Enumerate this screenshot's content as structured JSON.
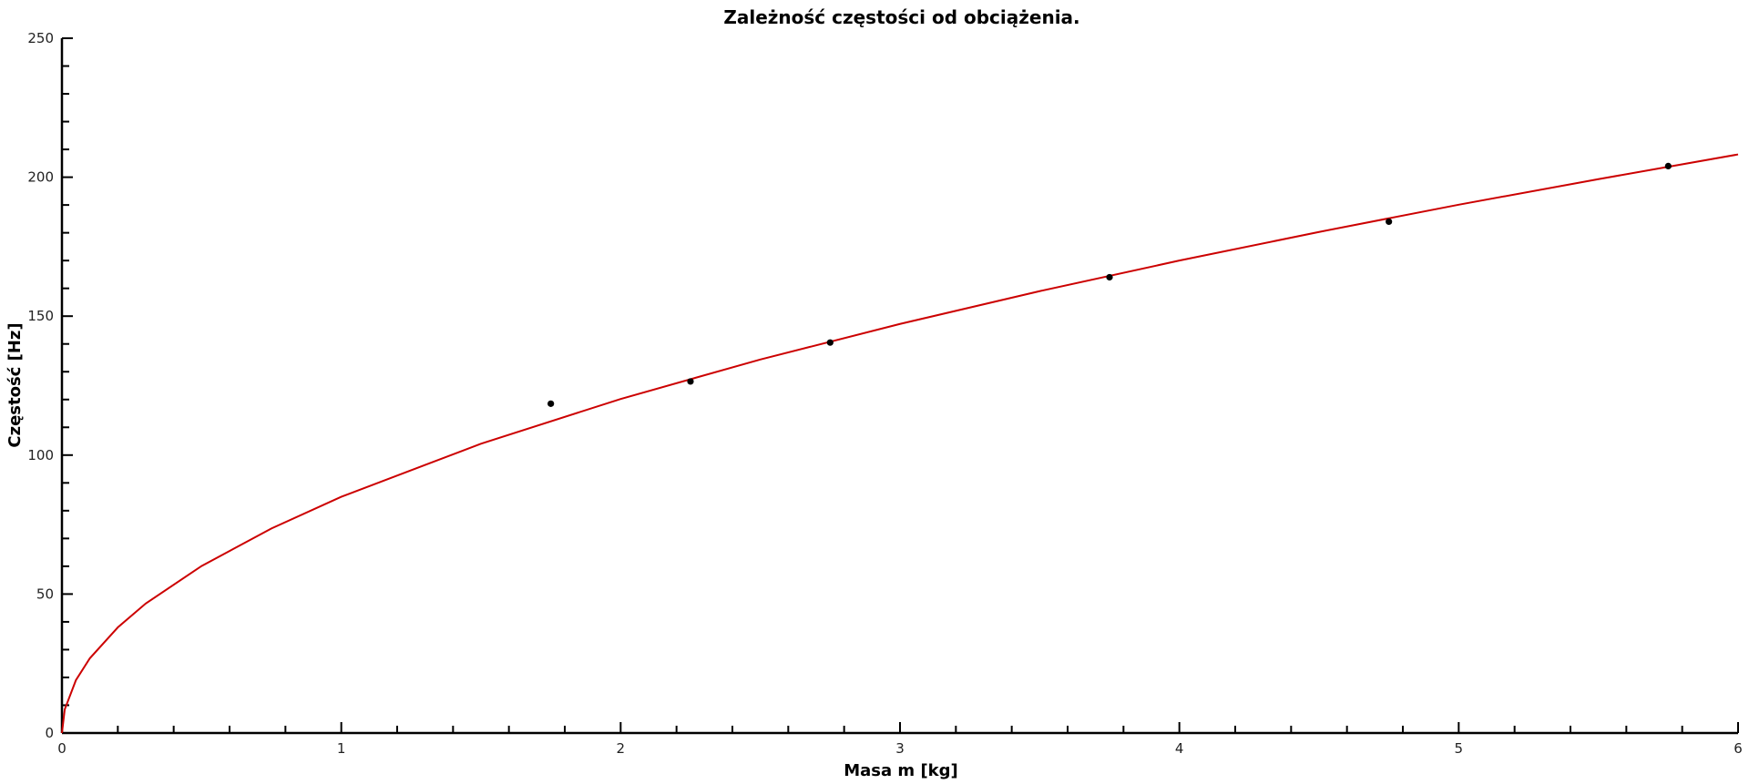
{
  "chart_data": {
    "type": "scatter",
    "title": "Zależność częstości od obciążenia.",
    "xlabel": "Masa m [kg]",
    "ylabel": "Częstość [Hz]",
    "xlim": [
      0,
      6
    ],
    "ylim": [
      0,
      250
    ],
    "x_ticks": [
      "0",
      "1",
      "2",
      "3",
      "4",
      "5",
      "6"
    ],
    "y_ticks": [
      "0",
      "50",
      "100",
      "150",
      "200",
      "250"
    ],
    "grid": false,
    "series": [
      {
        "kind": "points",
        "color": "#000000",
        "x": [
          1.75,
          2.25,
          2.75,
          3.75,
          4.75,
          5.75
        ],
        "y": [
          118.5,
          126.5,
          140.5,
          164,
          184,
          204
        ]
      },
      {
        "kind": "fit",
        "color": "#cc0000",
        "x": [
          0,
          0.01,
          0.05,
          0.1,
          0.2,
          0.3,
          0.5,
          0.75,
          1,
          1.5,
          2,
          2.5,
          3,
          3.5,
          4,
          4.5,
          5,
          5.5,
          6
        ],
        "y": [
          0,
          8.5,
          19,
          26.9,
          38,
          46.6,
          60.1,
          73.6,
          85,
          104.1,
          120.2,
          134.4,
          147.2,
          159,
          170,
          180.3,
          190.1,
          199.3,
          208.2
        ]
      }
    ]
  }
}
